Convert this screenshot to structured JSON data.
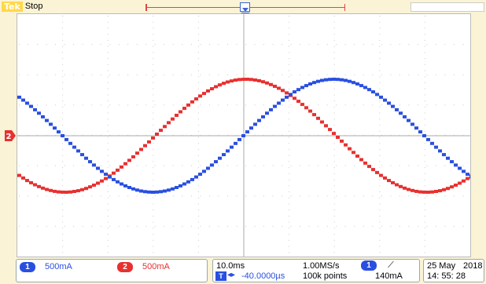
{
  "header": {
    "brand": "Tek",
    "run_status": "Stop"
  },
  "markers": {
    "trigger_position": "T",
    "ch2_label": "2"
  },
  "channels": [
    {
      "badge": "1",
      "scale": "500mA",
      "color": "#2a4fe0"
    },
    {
      "badge": "2",
      "scale": "500mA",
      "color": "#e83030"
    }
  ],
  "timebase": {
    "time_per_div": "10.0ms",
    "sample_rate": "1.00MS/s",
    "record_length": "100k points",
    "delay_text": "-40.0000µs"
  },
  "trigger": {
    "source_badge": "1",
    "slope_symbol": "⟋",
    "level": "140mA"
  },
  "clock": {
    "date": "25 May",
    "year": "2018",
    "time": "14: 55: 28"
  },
  "colors": {
    "ch1": "#2a4fe0",
    "ch2": "#e83030",
    "graticule": "#c8c8c8",
    "background": "#fbf3d5"
  }
}
